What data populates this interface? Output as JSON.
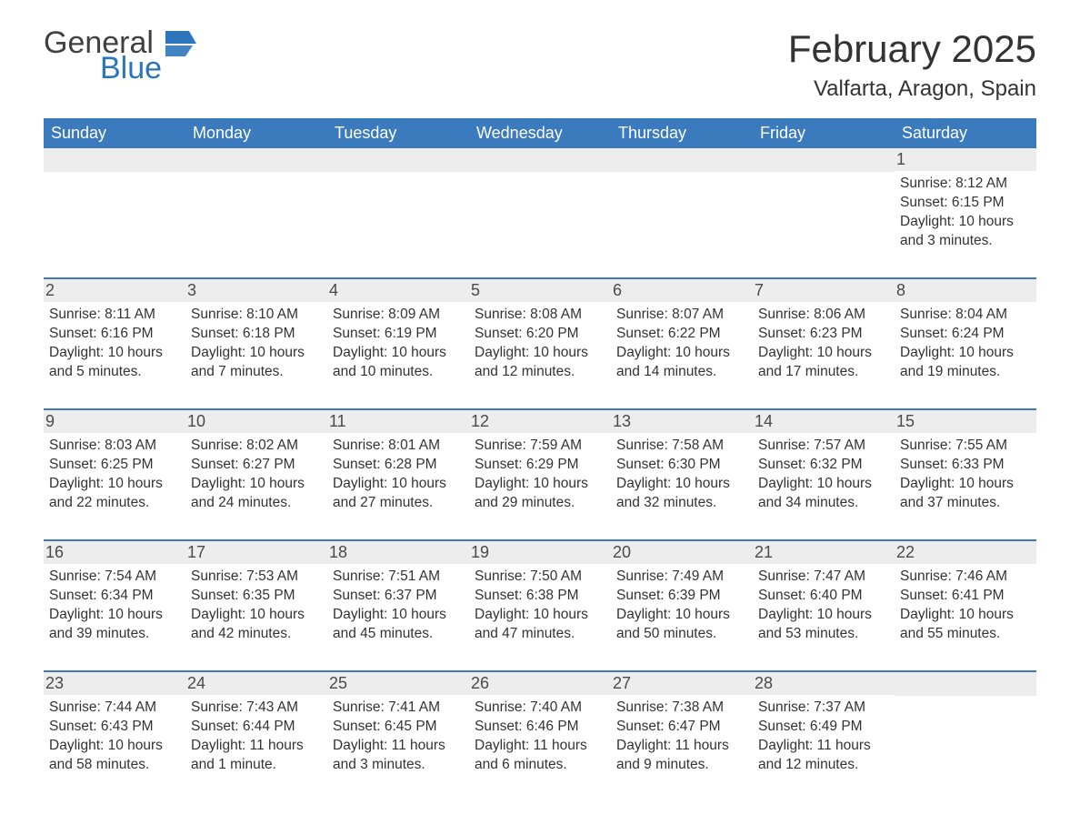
{
  "logo": {
    "text_general": "General",
    "text_blue": "Blue"
  },
  "title": "February 2025",
  "location": "Valfarta, Aragon, Spain",
  "colors": {
    "header_bg": "#3a7abd",
    "header_text": "#ffffff",
    "date_row_bg": "#ededed",
    "border": "#3a7abd",
    "logo_blue": "#2d75bb",
    "body_text": "#333333"
  },
  "day_names": [
    "Sunday",
    "Monday",
    "Tuesday",
    "Wednesday",
    "Thursday",
    "Friday",
    "Saturday"
  ],
  "weeks": [
    [
      {
        "blank": true
      },
      {
        "blank": true
      },
      {
        "blank": true
      },
      {
        "blank": true
      },
      {
        "blank": true
      },
      {
        "blank": true
      },
      {
        "date": "1",
        "sunrise": "Sunrise: 8:12 AM",
        "sunset": "Sunset: 6:15 PM",
        "daylight": "Daylight: 10 hours and 3 minutes."
      }
    ],
    [
      {
        "date": "2",
        "sunrise": "Sunrise: 8:11 AM",
        "sunset": "Sunset: 6:16 PM",
        "daylight": "Daylight: 10 hours and 5 minutes."
      },
      {
        "date": "3",
        "sunrise": "Sunrise: 8:10 AM",
        "sunset": "Sunset: 6:18 PM",
        "daylight": "Daylight: 10 hours and 7 minutes."
      },
      {
        "date": "4",
        "sunrise": "Sunrise: 8:09 AM",
        "sunset": "Sunset: 6:19 PM",
        "daylight": "Daylight: 10 hours and 10 minutes."
      },
      {
        "date": "5",
        "sunrise": "Sunrise: 8:08 AM",
        "sunset": "Sunset: 6:20 PM",
        "daylight": "Daylight: 10 hours and 12 minutes."
      },
      {
        "date": "6",
        "sunrise": "Sunrise: 8:07 AM",
        "sunset": "Sunset: 6:22 PM",
        "daylight": "Daylight: 10 hours and 14 minutes."
      },
      {
        "date": "7",
        "sunrise": "Sunrise: 8:06 AM",
        "sunset": "Sunset: 6:23 PM",
        "daylight": "Daylight: 10 hours and 17 minutes."
      },
      {
        "date": "8",
        "sunrise": "Sunrise: 8:04 AM",
        "sunset": "Sunset: 6:24 PM",
        "daylight": "Daylight: 10 hours and 19 minutes."
      }
    ],
    [
      {
        "date": "9",
        "sunrise": "Sunrise: 8:03 AM",
        "sunset": "Sunset: 6:25 PM",
        "daylight": "Daylight: 10 hours and 22 minutes."
      },
      {
        "date": "10",
        "sunrise": "Sunrise: 8:02 AM",
        "sunset": "Sunset: 6:27 PM",
        "daylight": "Daylight: 10 hours and 24 minutes."
      },
      {
        "date": "11",
        "sunrise": "Sunrise: 8:01 AM",
        "sunset": "Sunset: 6:28 PM",
        "daylight": "Daylight: 10 hours and 27 minutes."
      },
      {
        "date": "12",
        "sunrise": "Sunrise: 7:59 AM",
        "sunset": "Sunset: 6:29 PM",
        "daylight": "Daylight: 10 hours and 29 minutes."
      },
      {
        "date": "13",
        "sunrise": "Sunrise: 7:58 AM",
        "sunset": "Sunset: 6:30 PM",
        "daylight": "Daylight: 10 hours and 32 minutes."
      },
      {
        "date": "14",
        "sunrise": "Sunrise: 7:57 AM",
        "sunset": "Sunset: 6:32 PM",
        "daylight": "Daylight: 10 hours and 34 minutes."
      },
      {
        "date": "15",
        "sunrise": "Sunrise: 7:55 AM",
        "sunset": "Sunset: 6:33 PM",
        "daylight": "Daylight: 10 hours and 37 minutes."
      }
    ],
    [
      {
        "date": "16",
        "sunrise": "Sunrise: 7:54 AM",
        "sunset": "Sunset: 6:34 PM",
        "daylight": "Daylight: 10 hours and 39 minutes."
      },
      {
        "date": "17",
        "sunrise": "Sunrise: 7:53 AM",
        "sunset": "Sunset: 6:35 PM",
        "daylight": "Daylight: 10 hours and 42 minutes."
      },
      {
        "date": "18",
        "sunrise": "Sunrise: 7:51 AM",
        "sunset": "Sunset: 6:37 PM",
        "daylight": "Daylight: 10 hours and 45 minutes."
      },
      {
        "date": "19",
        "sunrise": "Sunrise: 7:50 AM",
        "sunset": "Sunset: 6:38 PM",
        "daylight": "Daylight: 10 hours and 47 minutes."
      },
      {
        "date": "20",
        "sunrise": "Sunrise: 7:49 AM",
        "sunset": "Sunset: 6:39 PM",
        "daylight": "Daylight: 10 hours and 50 minutes."
      },
      {
        "date": "21",
        "sunrise": "Sunrise: 7:47 AM",
        "sunset": "Sunset: 6:40 PM",
        "daylight": "Daylight: 10 hours and 53 minutes."
      },
      {
        "date": "22",
        "sunrise": "Sunrise: 7:46 AM",
        "sunset": "Sunset: 6:41 PM",
        "daylight": "Daylight: 10 hours and 55 minutes."
      }
    ],
    [
      {
        "date": "23",
        "sunrise": "Sunrise: 7:44 AM",
        "sunset": "Sunset: 6:43 PM",
        "daylight": "Daylight: 10 hours and 58 minutes."
      },
      {
        "date": "24",
        "sunrise": "Sunrise: 7:43 AM",
        "sunset": "Sunset: 6:44 PM",
        "daylight": "Daylight: 11 hours and 1 minute."
      },
      {
        "date": "25",
        "sunrise": "Sunrise: 7:41 AM",
        "sunset": "Sunset: 6:45 PM",
        "daylight": "Daylight: 11 hours and 3 minutes."
      },
      {
        "date": "26",
        "sunrise": "Sunrise: 7:40 AM",
        "sunset": "Sunset: 6:46 PM",
        "daylight": "Daylight: 11 hours and 6 minutes."
      },
      {
        "date": "27",
        "sunrise": "Sunrise: 7:38 AM",
        "sunset": "Sunset: 6:47 PM",
        "daylight": "Daylight: 11 hours and 9 minutes."
      },
      {
        "date": "28",
        "sunrise": "Sunrise: 7:37 AM",
        "sunset": "Sunset: 6:49 PM",
        "daylight": "Daylight: 11 hours and 12 minutes."
      },
      {
        "blank": true
      }
    ]
  ]
}
